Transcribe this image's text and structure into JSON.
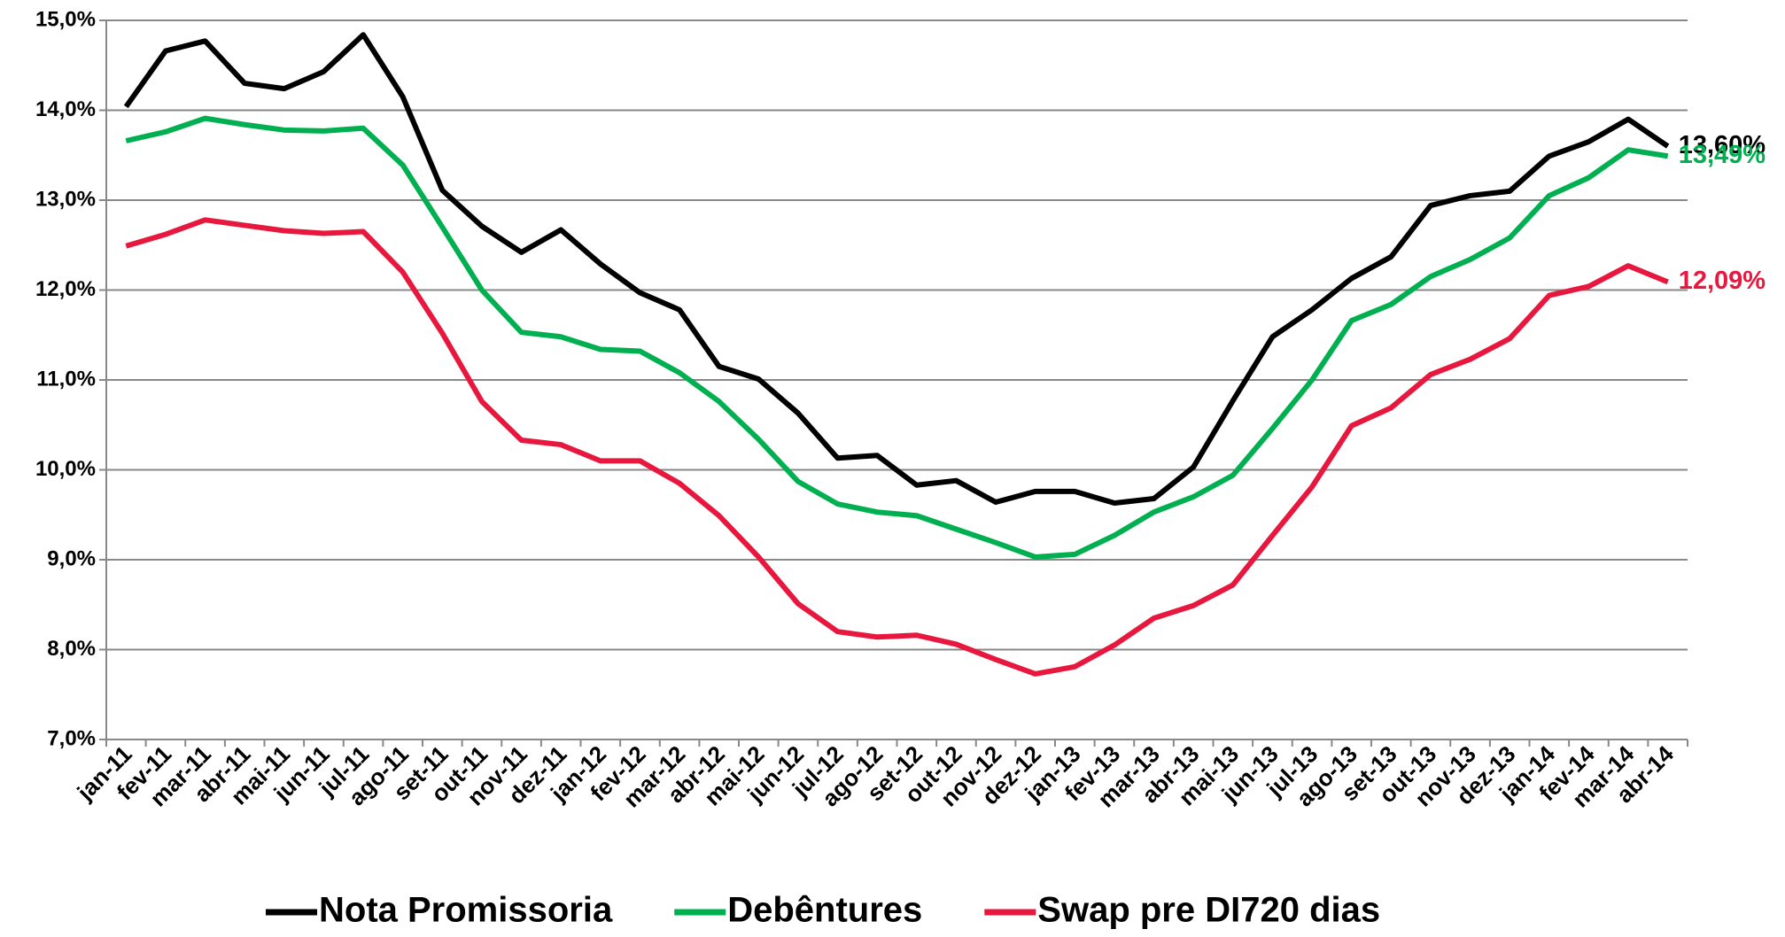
{
  "chart_data": {
    "type": "line",
    "categories": [
      "jan-11",
      "fev-11",
      "mar-11",
      "abr-11",
      "mai-11",
      "jun-11",
      "jul-11",
      "ago-11",
      "set-11",
      "out-11",
      "nov-11",
      "dez-11",
      "jan-12",
      "fev-12",
      "mar-12",
      "abr-12",
      "mai-12",
      "jun-12",
      "jul-12",
      "ago-12",
      "set-12",
      "out-12",
      "nov-12",
      "dez-12",
      "jan-13",
      "fev-13",
      "mar-13",
      "abr-13",
      "mai-13",
      "jun-13",
      "jul-13",
      "ago-13",
      "set-13",
      "out-13",
      "nov-13",
      "dez-13",
      "jan-14",
      "fev-14",
      "mar-14",
      "abr-14"
    ],
    "series": [
      {
        "name": "Nota Promissoria",
        "color": "#000000",
        "values": [
          14.04,
          14.66,
          14.77,
          14.3,
          14.24,
          14.43,
          14.84,
          14.15,
          13.11,
          12.71,
          12.42,
          12.67,
          12.29,
          11.97,
          11.78,
          11.15,
          11.01,
          10.63,
          10.13,
          10.16,
          9.83,
          9.88,
          9.64,
          9.76,
          9.76,
          9.63,
          9.68,
          10.03,
          10.77,
          11.48,
          11.78,
          12.13,
          12.37,
          12.94,
          13.05,
          13.1,
          13.49,
          13.65,
          13.9,
          13.6
        ],
        "value_labels": [
          null,
          null,
          null,
          null,
          null,
          null,
          null,
          null,
          null,
          null,
          null,
          null,
          null,
          null,
          null,
          null,
          null,
          null,
          null,
          null,
          null,
          null,
          null,
          null,
          null,
          null,
          null,
          null,
          null,
          null,
          null,
          null,
          null,
          null,
          null,
          null,
          null,
          null,
          null,
          "13,60%"
        ]
      },
      {
        "name": "Debêntures",
        "color": "#00b050",
        "values": [
          13.66,
          13.76,
          13.91,
          13.84,
          13.78,
          13.77,
          13.8,
          13.39,
          12.7,
          12.0,
          11.53,
          11.48,
          11.34,
          11.32,
          11.08,
          10.76,
          10.34,
          9.87,
          9.62,
          9.53,
          9.49,
          9.34,
          9.19,
          9.03,
          9.06,
          9.27,
          9.53,
          9.7,
          9.94,
          10.46,
          11.0,
          11.66,
          11.84,
          12.15,
          12.34,
          12.58,
          13.05,
          13.25,
          13.56,
          13.49
        ],
        "value_labels": [
          null,
          null,
          null,
          null,
          null,
          null,
          null,
          null,
          null,
          null,
          null,
          null,
          null,
          null,
          null,
          null,
          null,
          null,
          null,
          null,
          null,
          null,
          null,
          null,
          null,
          null,
          null,
          null,
          null,
          null,
          null,
          null,
          null,
          null,
          null,
          null,
          null,
          null,
          null,
          "13,49%"
        ]
      },
      {
        "name": "Swap pre DI720 dias",
        "color": "#e8173e",
        "values": [
          12.49,
          12.62,
          12.78,
          12.72,
          12.66,
          12.63,
          12.65,
          12.2,
          11.52,
          10.76,
          10.33,
          10.28,
          10.1,
          10.1,
          9.85,
          9.49,
          9.03,
          8.51,
          8.2,
          8.14,
          8.16,
          8.06,
          7.89,
          7.73,
          7.81,
          8.05,
          8.35,
          8.49,
          8.72,
          9.27,
          9.81,
          10.49,
          10.69,
          11.06,
          11.23,
          11.46,
          11.94,
          12.04,
          12.27,
          12.09
        ],
        "value_labels": [
          null,
          null,
          null,
          null,
          null,
          null,
          null,
          null,
          null,
          null,
          null,
          null,
          null,
          null,
          null,
          null,
          null,
          null,
          null,
          null,
          null,
          null,
          null,
          null,
          null,
          null,
          null,
          null,
          null,
          null,
          null,
          null,
          null,
          null,
          null,
          null,
          null,
          null,
          null,
          "12,09%"
        ]
      }
    ],
    "ylim": [
      7,
      15
    ],
    "yticks": [
      {
        "value": 7,
        "label": "7,0%"
      },
      {
        "value": 8,
        "label": "8,0%"
      },
      {
        "value": 9,
        "label": "9,0%"
      },
      {
        "value": 10,
        "label": "10,0%"
      },
      {
        "value": 11,
        "label": "11,0%"
      },
      {
        "value": 12,
        "label": "12,0%"
      },
      {
        "value": 13,
        "label": "13,0%"
      },
      {
        "value": 14,
        "label": "14,0%"
      },
      {
        "value": 15,
        "label": "15,0%"
      }
    ],
    "grid": true,
    "legend": "bottom"
  }
}
